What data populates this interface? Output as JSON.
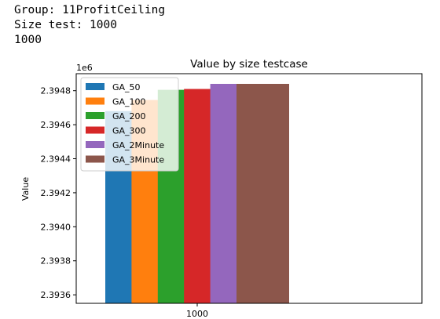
{
  "console": {
    "lines": [
      "Group: 11ProfitCeiling",
      "Size test: 1000",
      "1000"
    ]
  },
  "chart_data": {
    "type": "bar",
    "title": "Value by size testcase",
    "xlabel": "",
    "ylabel": "Value",
    "offset_label": "1e6",
    "categories": [
      "1000"
    ],
    "ylim": [
      2393550,
      2394900
    ],
    "yticks": [
      2393600,
      2393800,
      2394000,
      2394200,
      2394400,
      2394600,
      2394800
    ],
    "ytick_labels": [
      "2.3936",
      "2.3938",
      "2.3940",
      "2.3942",
      "2.3944",
      "2.3946",
      "2.3948"
    ],
    "legend_position": "upper-left",
    "series": [
      {
        "name": "GA_50",
        "color": "#1f77b4",
        "values": [
          2394680
        ]
      },
      {
        "name": "GA_100",
        "color": "#ff7f0e",
        "values": [
          2394745
        ]
      },
      {
        "name": "GA_200",
        "color": "#2ca02c",
        "values": [
          2394805
        ]
      },
      {
        "name": "GA_300",
        "color": "#d62728",
        "values": [
          2394810
        ]
      },
      {
        "name": "GA_2Minute",
        "color": "#9467bd",
        "values": [
          2394840
        ]
      },
      {
        "name": "GA_3Minute",
        "color": "#8c564b",
        "values": [
          2394840
        ]
      }
    ]
  }
}
